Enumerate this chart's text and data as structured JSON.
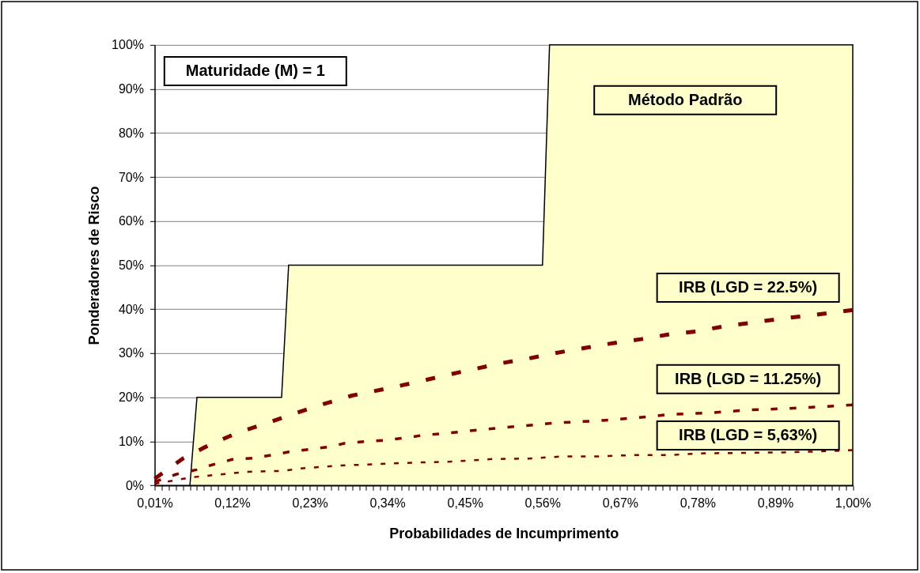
{
  "chart_data": {
    "type": "line",
    "xlabel": "Probabilidades de Incumprimento",
    "ylabel": "Ponderadores de Risco",
    "annotations": [
      "Maturidade (M) = 1"
    ],
    "xlim": [
      0.01,
      1.0
    ],
    "ylim": [
      0,
      100
    ],
    "xticks": [
      {
        "value": 0.01,
        "label": "0,01%"
      },
      {
        "value": 0.02,
        "label": null
      },
      {
        "value": 0.03,
        "label": null
      },
      {
        "value": 0.04,
        "label": null
      },
      {
        "value": 0.05,
        "label": null
      },
      {
        "value": 0.06,
        "label": null
      },
      {
        "value": 0.07,
        "label": null
      },
      {
        "value": 0.08,
        "label": null
      },
      {
        "value": 0.09,
        "label": null
      },
      {
        "value": 0.1,
        "label": null
      },
      {
        "value": 0.11,
        "label": null
      },
      {
        "value": 0.12,
        "label": "0,12%"
      },
      {
        "value": 0.13,
        "label": null
      },
      {
        "value": 0.14,
        "label": null
      },
      {
        "value": 0.15,
        "label": null
      },
      {
        "value": 0.16,
        "label": null
      },
      {
        "value": 0.17,
        "label": null
      },
      {
        "value": 0.18,
        "label": null
      },
      {
        "value": 0.19,
        "label": null
      },
      {
        "value": 0.2,
        "label": null
      },
      {
        "value": 0.21,
        "label": null
      },
      {
        "value": 0.22,
        "label": null
      },
      {
        "value": 0.23,
        "label": "0,23%"
      },
      {
        "value": 0.24,
        "label": null
      },
      {
        "value": 0.25,
        "label": null
      },
      {
        "value": 0.26,
        "label": null
      },
      {
        "value": 0.27,
        "label": null
      },
      {
        "value": 0.28,
        "label": null
      },
      {
        "value": 0.29,
        "label": null
      },
      {
        "value": 0.3,
        "label": null
      },
      {
        "value": 0.31,
        "label": null
      },
      {
        "value": 0.32,
        "label": null
      },
      {
        "value": 0.33,
        "label": null
      },
      {
        "value": 0.34,
        "label": "0,34%"
      },
      {
        "value": 0.35,
        "label": null
      },
      {
        "value": 0.36,
        "label": null
      },
      {
        "value": 0.37,
        "label": null
      },
      {
        "value": 0.38,
        "label": null
      },
      {
        "value": 0.39,
        "label": null
      },
      {
        "value": 0.4,
        "label": null
      },
      {
        "value": 0.41,
        "label": null
      },
      {
        "value": 0.42,
        "label": null
      },
      {
        "value": 0.43,
        "label": null
      },
      {
        "value": 0.44,
        "label": null
      },
      {
        "value": 0.45,
        "label": "0,45%"
      },
      {
        "value": 0.46,
        "label": null
      },
      {
        "value": 0.47,
        "label": null
      },
      {
        "value": 0.48,
        "label": null
      },
      {
        "value": 0.49,
        "label": null
      },
      {
        "value": 0.5,
        "label": null
      },
      {
        "value": 0.51,
        "label": null
      },
      {
        "value": 0.52,
        "label": null
      },
      {
        "value": 0.53,
        "label": null
      },
      {
        "value": 0.54,
        "label": null
      },
      {
        "value": 0.55,
        "label": null
      },
      {
        "value": 0.56,
        "label": "0,56%"
      },
      {
        "value": 0.57,
        "label": null
      },
      {
        "value": 0.58,
        "label": null
      },
      {
        "value": 0.59,
        "label": null
      },
      {
        "value": 0.6,
        "label": null
      },
      {
        "value": 0.61,
        "label": null
      },
      {
        "value": 0.62,
        "label": null
      },
      {
        "value": 0.63,
        "label": null
      },
      {
        "value": 0.64,
        "label": null
      },
      {
        "value": 0.65,
        "label": null
      },
      {
        "value": 0.66,
        "label": null
      },
      {
        "value": 0.67,
        "label": "0,67%"
      },
      {
        "value": 0.68,
        "label": null
      },
      {
        "value": 0.69,
        "label": null
      },
      {
        "value": 0.7,
        "label": null
      },
      {
        "value": 0.71,
        "label": null
      },
      {
        "value": 0.72,
        "label": null
      },
      {
        "value": 0.73,
        "label": null
      },
      {
        "value": 0.74,
        "label": null
      },
      {
        "value": 0.75,
        "label": null
      },
      {
        "value": 0.76,
        "label": null
      },
      {
        "value": 0.77,
        "label": null
      },
      {
        "value": 0.78,
        "label": "0,78%"
      },
      {
        "value": 0.79,
        "label": null
      },
      {
        "value": 0.8,
        "label": null
      },
      {
        "value": 0.81,
        "label": null
      },
      {
        "value": 0.82,
        "label": null
      },
      {
        "value": 0.83,
        "label": null
      },
      {
        "value": 0.84,
        "label": null
      },
      {
        "value": 0.85,
        "label": null
      },
      {
        "value": 0.86,
        "label": null
      },
      {
        "value": 0.87,
        "label": null
      },
      {
        "value": 0.88,
        "label": null
      },
      {
        "value": 0.89,
        "label": "0,89%"
      },
      {
        "value": 0.9,
        "label": null
      },
      {
        "value": 0.91,
        "label": null
      },
      {
        "value": 0.92,
        "label": null
      },
      {
        "value": 0.93,
        "label": null
      },
      {
        "value": 0.94,
        "label": null
      },
      {
        "value": 0.95,
        "label": null
      },
      {
        "value": 0.96,
        "label": null
      },
      {
        "value": 0.97,
        "label": null
      },
      {
        "value": 0.98,
        "label": null
      },
      {
        "value": 0.99,
        "label": null
      },
      {
        "value": 1.0,
        "label": "1,00%"
      }
    ],
    "yticks": [
      {
        "value": 0,
        "label": "0%"
      },
      {
        "value": 10,
        "label": "10%"
      },
      {
        "value": 20,
        "label": "20%"
      },
      {
        "value": 30,
        "label": "30%"
      },
      {
        "value": 40,
        "label": "40%"
      },
      {
        "value": 50,
        "label": "50%"
      },
      {
        "value": 60,
        "label": "60%"
      },
      {
        "value": 70,
        "label": "70%"
      },
      {
        "value": 80,
        "label": "80%"
      },
      {
        "value": 90,
        "label": "90%"
      },
      {
        "value": 100,
        "label": "100%"
      }
    ],
    "grid": "y",
    "series": [
      {
        "name": "Método Padrão",
        "type": "area",
        "color": "#ffffcc",
        "x": [
          0.01,
          0.06,
          0.07,
          0.19,
          0.2,
          0.56,
          0.57,
          1.0
        ],
        "values": [
          0,
          0,
          20,
          20,
          50,
          50,
          100,
          100
        ]
      },
      {
        "name": "IRB (LGD = 22.5%)",
        "color": "#800000",
        "line_style": "dashed",
        "x": [
          0.01,
          0.05,
          0.09,
          0.13,
          0.17,
          0.21,
          0.25,
          0.29,
          0.34,
          0.38,
          0.42,
          0.46,
          0.5,
          0.54,
          0.58,
          0.62,
          0.66,
          0.7,
          0.74,
          0.78,
          0.82,
          0.86,
          0.9,
          0.94,
          0.98,
          1.0
        ],
        "values": [
          1.5,
          6.1,
          9.4,
          12.1,
          14.2,
          16.4,
          18.5,
          20.4,
          22.0,
          23.4,
          24.9,
          26.3,
          27.7,
          28.8,
          30.1,
          31.2,
          32.3,
          33.2,
          34.3,
          35.0,
          36.2,
          37.0,
          37.9,
          38.6,
          39.4,
          39.8
        ]
      },
      {
        "name": "IRB (LGD = 11.25%)",
        "color": "#800000",
        "line_style": "dashed",
        "x": [
          0.01,
          0.04,
          0.07,
          0.09,
          0.12,
          0.15,
          0.18,
          0.2,
          0.23,
          0.26,
          0.28,
          0.31,
          0.34,
          0.37,
          0.39,
          0.42,
          0.47,
          0.53,
          0.58,
          0.64,
          0.69,
          0.74,
          0.8,
          0.85,
          0.91,
          0.96,
          1.0
        ],
        "values": [
          0.8,
          2.5,
          3.6,
          4.6,
          5.9,
          6.2,
          7.0,
          7.6,
          8.2,
          8.8,
          9.6,
          10.0,
          10.3,
          10.9,
          11.4,
          11.8,
          12.6,
          13.5,
          14.2,
          14.7,
          15.3,
          16.1,
          16.5,
          17.1,
          17.5,
          17.9,
          18.3
        ]
      },
      {
        "name": "IRB (LGD = 5,63%)",
        "color": "#800000",
        "line_style": "dashed",
        "x": [
          0.01,
          0.04,
          0.06,
          0.11,
          0.14,
          0.19,
          0.22,
          0.27,
          0.32,
          0.38,
          0.43,
          0.49,
          0.54,
          0.59,
          0.64,
          0.69,
          0.74,
          0.79,
          0.85,
          0.9,
          0.95,
          1.0
        ],
        "values": [
          0.4,
          1.2,
          1.8,
          2.6,
          3.1,
          3.3,
          3.9,
          4.5,
          4.8,
          5.2,
          5.4,
          6.0,
          6.1,
          6.6,
          6.6,
          6.9,
          6.9,
          7.3,
          7.4,
          7.5,
          7.7,
          8.0
        ]
      }
    ]
  }
}
